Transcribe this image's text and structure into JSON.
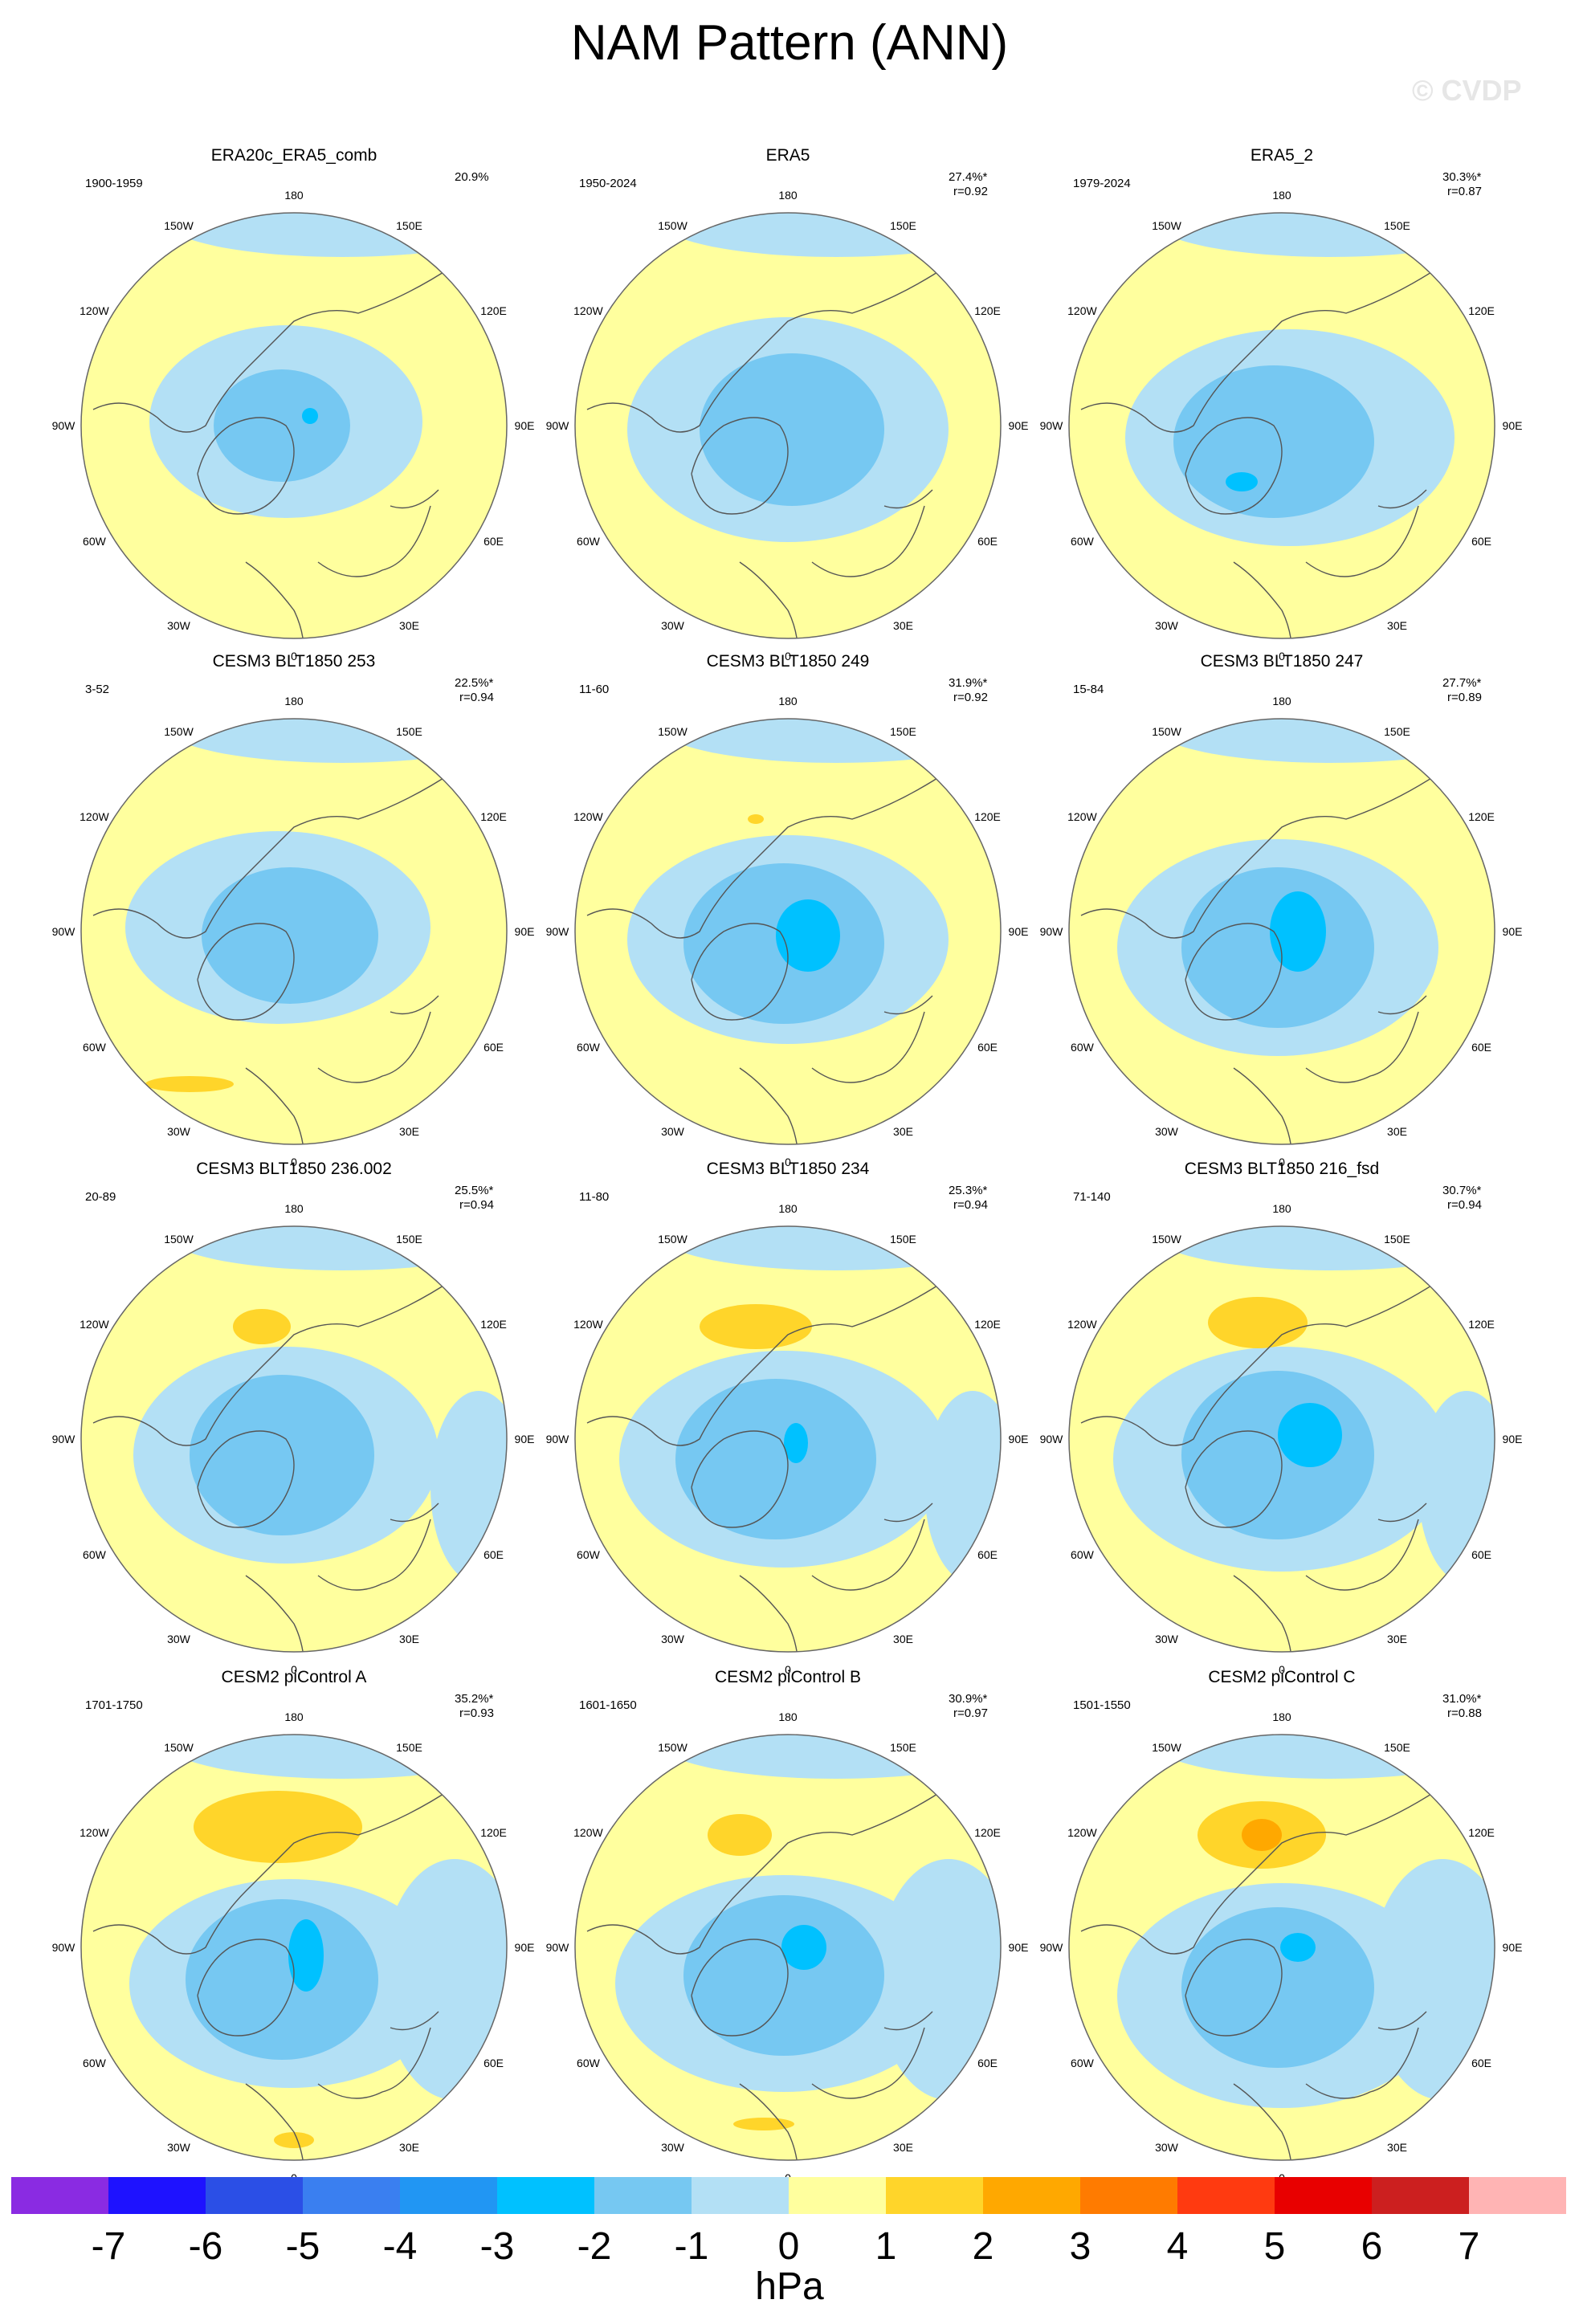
{
  "title": "NAM Pattern (ANN)",
  "watermark": "© CVDP",
  "lon_labels": {
    "top": "180",
    "bottom": "0",
    "upper_left": "150W",
    "upper_right": "150E",
    "mid_upper_left": "120W",
    "mid_upper_right": "120E",
    "left": "90W",
    "right": "90E",
    "mid_lower_left": "60W",
    "mid_lower_right": "60E",
    "lower_left": "30W",
    "lower_right": "30E"
  },
  "panels": [
    {
      "name": "ERA20c_ERA5_comb",
      "years": "1900-1959",
      "pct": "20.9%",
      "r": ""
    },
    {
      "name": "ERA5",
      "years": "1950-2024",
      "pct": "27.4%*",
      "r": "r=0.92"
    },
    {
      "name": "ERA5_2",
      "years": "1979-2024",
      "pct": "30.3%*",
      "r": "r=0.87"
    },
    {
      "name": "CESM3 BLT1850 253",
      "years": "3-52",
      "pct": "22.5%*",
      "r": "r=0.94"
    },
    {
      "name": "CESM3 BLT1850 249",
      "years": "11-60",
      "pct": "31.9%*",
      "r": "r=0.92"
    },
    {
      "name": "CESM3 BLT1850 247",
      "years": "15-84",
      "pct": "27.7%*",
      "r": "r=0.89"
    },
    {
      "name": "CESM3 BLT1850 236.002",
      "years": "20-89",
      "pct": "25.5%*",
      "r": "r=0.94"
    },
    {
      "name": "CESM3 BLT1850 234",
      "years": "11-80",
      "pct": "25.3%*",
      "r": "r=0.94"
    },
    {
      "name": "CESM3 BLT1850 216_fsd",
      "years": "71-140",
      "pct": "30.7%*",
      "r": "r=0.94"
    },
    {
      "name": "CESM2 piControl A",
      "years": "1701-1750",
      "pct": "35.2%*",
      "r": "r=0.93"
    },
    {
      "name": "CESM2 piControl B",
      "years": "1601-1650",
      "pct": "30.9%*",
      "r": "r=0.97"
    },
    {
      "name": "CESM2 piControl C",
      "years": "1501-1550",
      "pct": "31.0%*",
      "r": "r=0.88"
    }
  ],
  "colorbar": {
    "colors": [
      "#8a2be2",
      "#1e12ff",
      "#2b4fe6",
      "#3a7ff0",
      "#2196f3",
      "#00c1ff",
      "#76c8f2",
      "#b3e0f5",
      "#ffff9e",
      "#ffd52a",
      "#ffa800",
      "#ff7b00",
      "#ff3a10",
      "#e80000",
      "#cc1f1f",
      "#ffb4b4"
    ],
    "ticks": [
      "-7",
      "-6",
      "-5",
      "-4",
      "-3",
      "-2",
      "-1",
      "0",
      "1",
      "2",
      "3",
      "4",
      "5",
      "6",
      "7"
    ],
    "units": "hPa"
  },
  "colors": {
    "neg1": "#b3e0f5",
    "neg2": "#76c8f2",
    "neg3": "#00c1ff",
    "neg4": "#2196f3",
    "pos1": "#ffff9e",
    "pos2": "#ffd52a",
    "pos3": "#ffa800"
  }
}
